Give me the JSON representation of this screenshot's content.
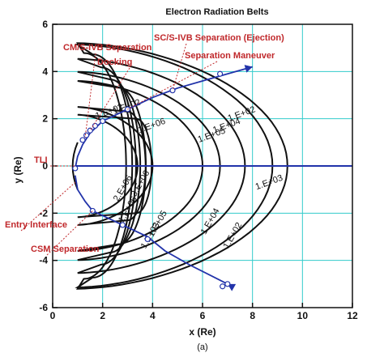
{
  "title": "Electron Radiation Belts",
  "caption": "(a)",
  "colors": {
    "trajectory": "#2233aa",
    "contours": "#111111",
    "grid": "#33cccc",
    "annotation": "#c0282b",
    "marker_fill": "#ffffff"
  },
  "chart_data": {
    "type": "contour",
    "title": "Electron Radiation Belts",
    "xlabel": "x (Re)",
    "ylabel": "y (Re)",
    "xlim": [
      0,
      12
    ],
    "ylim": [
      -6,
      6
    ],
    "xticks": [
      "0",
      "2",
      "4",
      "6",
      "8",
      "10",
      "12"
    ],
    "yticks": [
      "-6",
      "-4",
      "-2",
      "0",
      "2",
      "4",
      "6"
    ],
    "grid": true,
    "contour_levels": [
      {
        "label": "1.E+02",
        "x_extent_equator": 9.4
      },
      {
        "label": "1.E+03",
        "x_extent_equator": 8.8
      },
      {
        "label": "1.E+04",
        "x_extent_equator": 7.7
      },
      {
        "label": "1.E+05",
        "x_extent_equator": 6.7
      },
      {
        "label": "1.E+06",
        "x_extent_equator": 6.0
      },
      {
        "label": "2.E+06",
        "x_extent_equator": 4.0
      },
      {
        "label": "3.E+06",
        "x_extent_equator": 3.4
      }
    ],
    "contour_labels_upper": [
      "1.E+02",
      "1.E+03",
      "1.E+04",
      "1.E+05",
      "1.E+06",
      "1.E+02",
      "1.E+02"
    ],
    "contour_labels_lower": [
      "2.E+06",
      "3.E+06",
      "1.E+06",
      "1.E+05",
      "1.E+04",
      "1.E+03",
      "1.E+02"
    ],
    "trajectory_outbound": {
      "x": [
        0.9,
        1.0,
        1.2,
        1.5,
        2.0,
        3.0,
        4.0,
        5.0,
        6.0,
        7.0,
        8.0
      ],
      "y": [
        -0.1,
        0.4,
        0.9,
        1.4,
        1.9,
        2.4,
        2.9,
        3.3,
        3.6,
        3.9,
        4.2
      ]
    },
    "trajectory_inbound": {
      "x": [
        7.0,
        5.5,
        4.5,
        3.8,
        3.0,
        2.2,
        1.6,
        1.3,
        1.0,
        0.9
      ],
      "y": [
        -5.0,
        -4.2,
        -3.6,
        -3.0,
        -2.6,
        -2.2,
        -1.9,
        -1.5,
        -1.0,
        -0.4
      ]
    },
    "markers": {
      "x": [
        0.9,
        1.2,
        1.35,
        1.5,
        1.7,
        2.0,
        3.0,
        4.8,
        6.7,
        7.0,
        1.6,
        2.8,
        3.8,
        6.8
      ],
      "y": [
        -0.1,
        1.1,
        1.3,
        1.5,
        1.7,
        1.9,
        2.4,
        3.2,
        3.9,
        -5.0,
        -1.9,
        -2.5,
        -3.1,
        -5.1
      ]
    },
    "equator_line": {
      "x": [
        0.9,
        12
      ],
      "y": [
        0,
        0
      ]
    },
    "annotations": [
      "CM/S-IVB Separation",
      "SC/S-IVB Separation (Ejection)",
      "Docking",
      "Separation Maneuver",
      "TLI",
      "Entry Interface",
      "CSM Separation"
    ]
  }
}
